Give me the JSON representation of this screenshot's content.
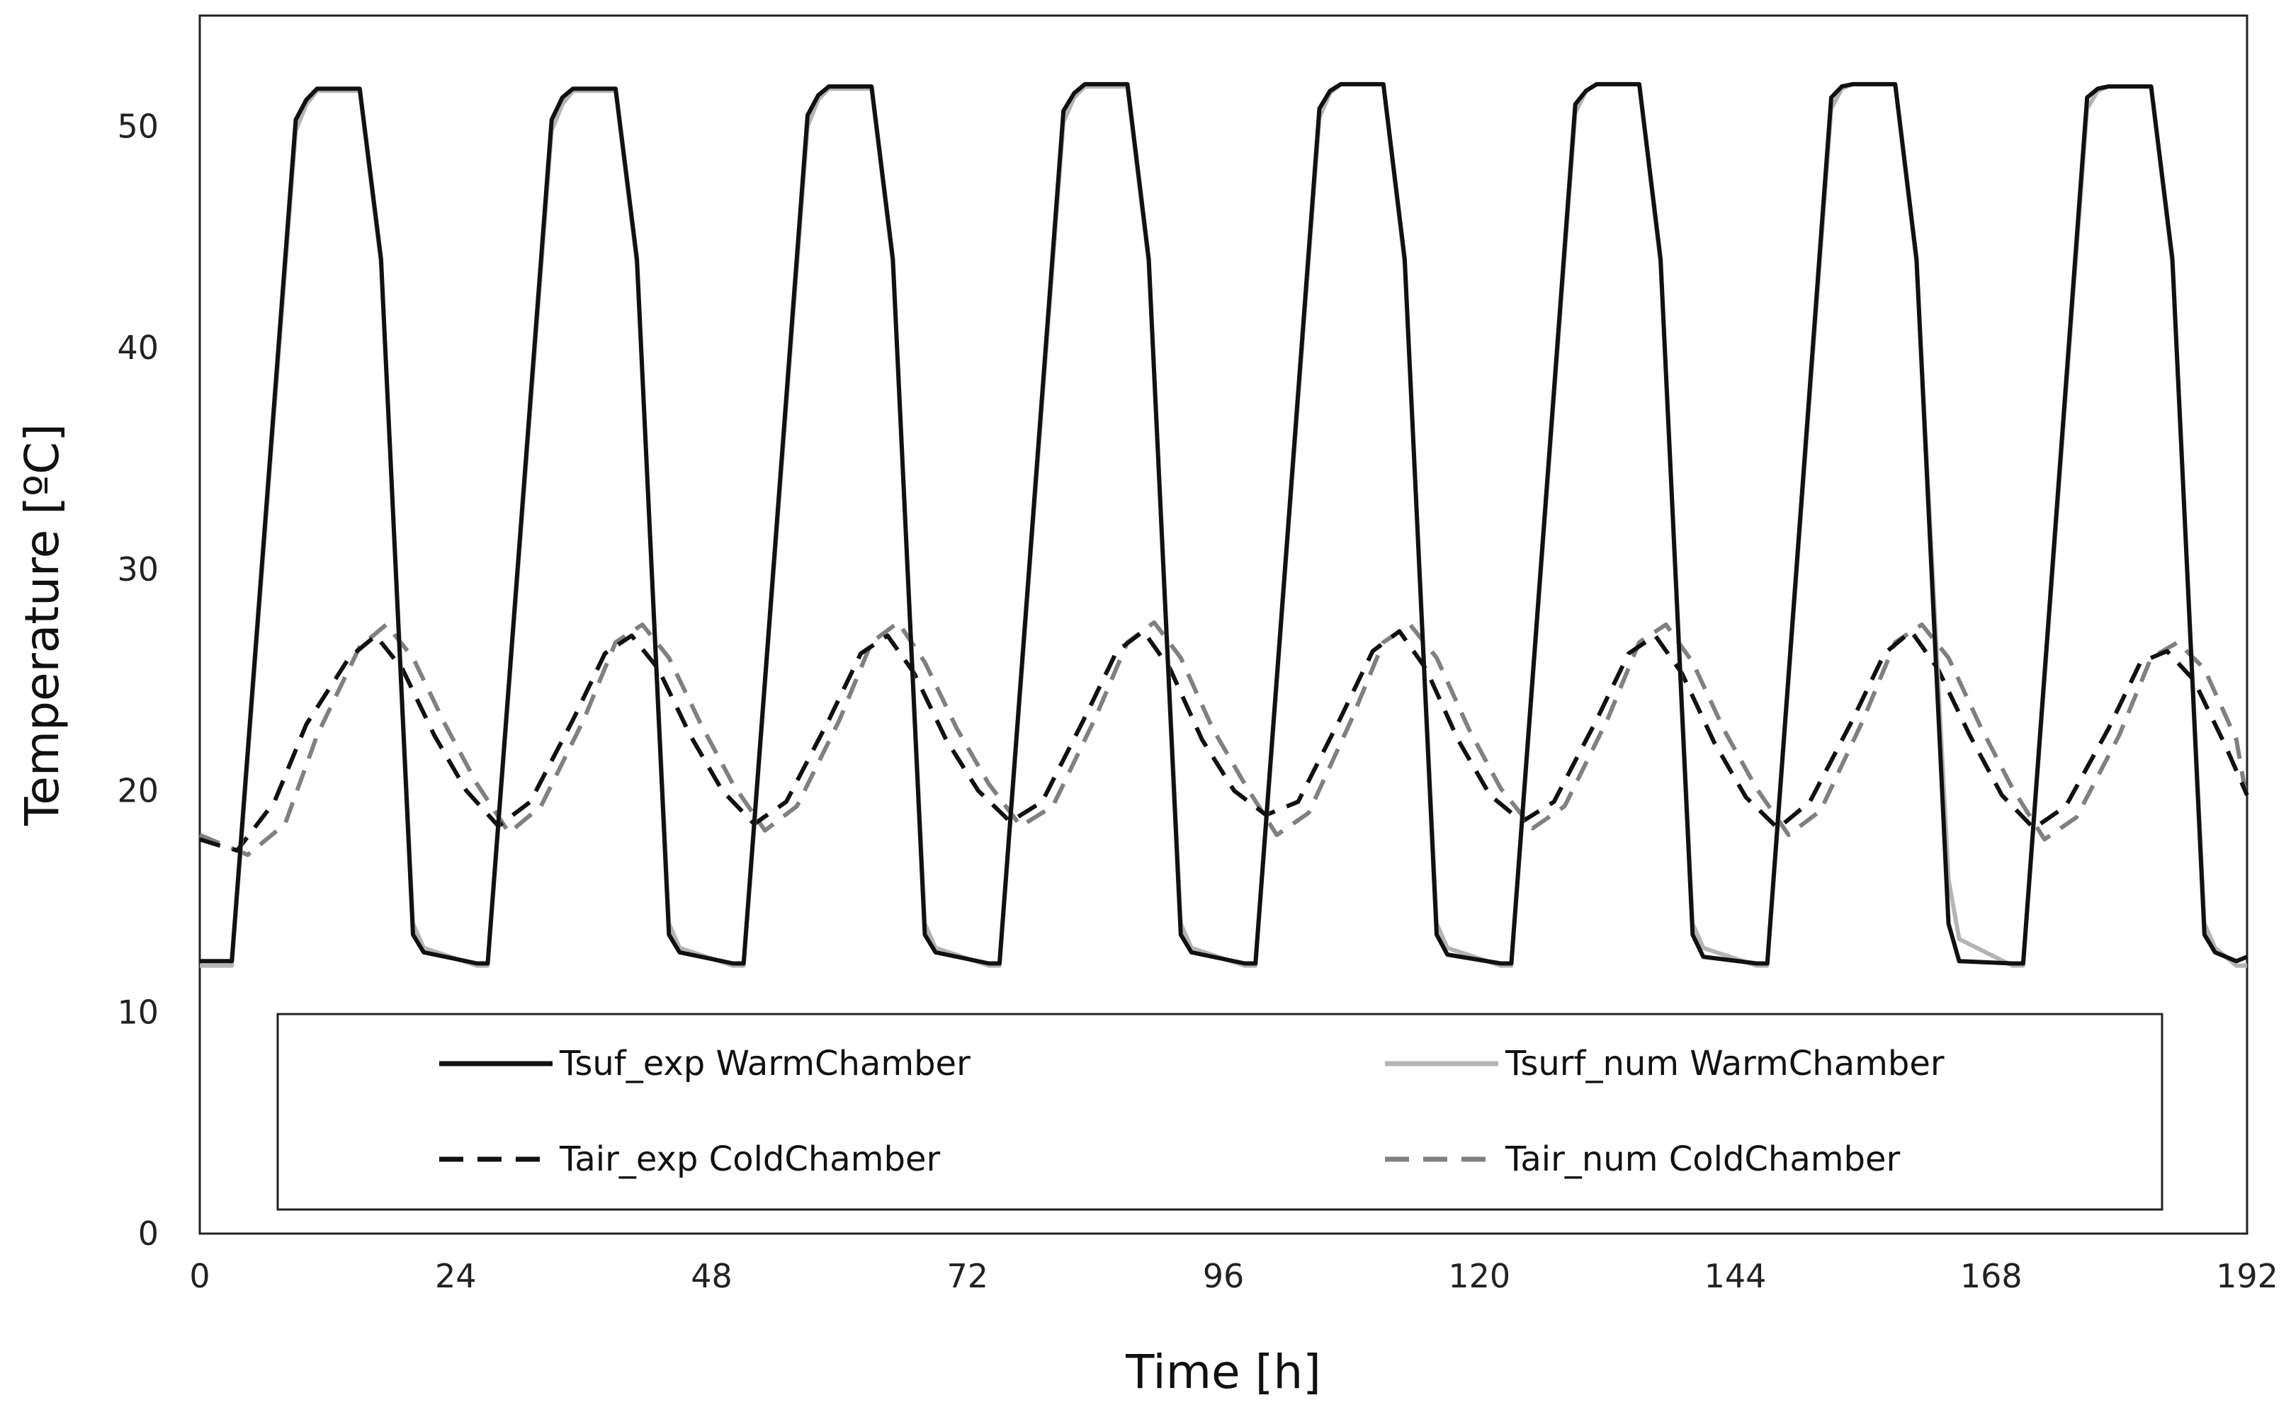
{
  "chart_data": {
    "type": "line",
    "title": "",
    "xlabel": "Time [h]",
    "ylabel": "Temperature [ºC]",
    "xlim": [
      0,
      192
    ],
    "ylim": [
      0,
      55
    ],
    "x_ticks": [
      0,
      24,
      48,
      72,
      96,
      120,
      144,
      168,
      192
    ],
    "y_ticks": [
      0,
      10,
      20,
      30,
      40,
      50
    ],
    "x_tick_labels": [
      "0",
      "24",
      "48",
      "72",
      "96",
      "120",
      "144",
      "168",
      "192"
    ],
    "y_tick_labels": [
      "0",
      "10",
      "20",
      "30",
      "40",
      "50"
    ],
    "grid": false,
    "legend_position": "bottom",
    "series": [
      {
        "name": "Tsuf_exp WarmChamber",
        "color": "#111111",
        "style": "solid",
        "x": [
          0,
          3,
          9,
          10,
          11,
          15,
          17,
          20,
          21,
          26,
          27,
          33,
          34,
          35,
          39,
          41,
          44,
          45,
          50,
          51,
          57,
          58,
          59,
          63,
          65,
          68,
          69,
          74,
          75,
          81,
          82,
          83,
          87,
          89,
          92,
          93,
          98,
          99,
          105,
          106,
          107,
          111,
          113,
          116,
          117,
          122,
          123,
          129,
          130,
          131,
          135,
          137,
          140,
          141,
          146,
          147,
          153,
          154,
          155,
          159,
          161,
          164,
          165,
          170,
          171,
          177,
          178,
          179,
          183,
          185,
          188,
          189,
          191,
          192
        ],
        "y": [
          12.3,
          12.3,
          50.3,
          51.2,
          51.7,
          51.7,
          44,
          13.5,
          12.7,
          12.2,
          12.2,
          50.3,
          51.3,
          51.7,
          51.7,
          44,
          13.5,
          12.7,
          12.2,
          12.2,
          50.5,
          51.4,
          51.8,
          51.8,
          44,
          13.5,
          12.7,
          12.2,
          12.2,
          50.7,
          51.5,
          51.9,
          51.9,
          44,
          13.5,
          12.7,
          12.2,
          12.2,
          50.8,
          51.6,
          51.9,
          51.9,
          44,
          13.5,
          12.6,
          12.2,
          12.2,
          51,
          51.6,
          51.9,
          51.9,
          44,
          13.5,
          12.5,
          12.2,
          12.2,
          51.3,
          51.8,
          51.9,
          51.9,
          44,
          14,
          12.3,
          12.2,
          12.2,
          51.3,
          51.7,
          51.8,
          51.8,
          44,
          13.5,
          12.7,
          12.3,
          12.5
        ]
      },
      {
        "name": "Tsurf_num WarmChamber",
        "color": "#b4b4b4",
        "style": "solid",
        "x": [
          0,
          3,
          9,
          10,
          11,
          15,
          17,
          20,
          21,
          26,
          27,
          33,
          34,
          35,
          39,
          41,
          44,
          45,
          50,
          51,
          57,
          58,
          59,
          63,
          65,
          68,
          69,
          74,
          75,
          81,
          82,
          83,
          87,
          89,
          92,
          93,
          98,
          99,
          105,
          106,
          107,
          111,
          113,
          116,
          117,
          122,
          123,
          129,
          130,
          131,
          135,
          137,
          140,
          141,
          146,
          147,
          153,
          154,
          155,
          159,
          161,
          164,
          165,
          170,
          171,
          177,
          178,
          179,
          183,
          185,
          188,
          189,
          191,
          192
        ],
        "y": [
          12.1,
          12.1,
          49.8,
          51,
          51.6,
          51.6,
          43.8,
          14,
          12.9,
          12.1,
          12.1,
          49.8,
          51,
          51.6,
          51.6,
          43.8,
          14,
          12.9,
          12.1,
          12.1,
          50,
          51.2,
          51.7,
          51.7,
          43.8,
          14,
          12.9,
          12.1,
          12.1,
          50.2,
          51.3,
          51.8,
          51.8,
          43.8,
          14,
          12.9,
          12.1,
          12.1,
          50.4,
          51.5,
          51.9,
          51.9,
          43.8,
          14,
          12.9,
          12.1,
          12.1,
          50.6,
          51.6,
          51.9,
          51.9,
          43.8,
          14,
          12.9,
          12.1,
          12.1,
          50.8,
          51.7,
          51.9,
          51.9,
          43.8,
          16,
          13.3,
          12.1,
          12.1,
          50.8,
          51.6,
          51.8,
          51.8,
          43.8,
          14,
          12.9,
          12.1,
          12.1
        ]
      },
      {
        "name": "Tair_exp ColdChamber",
        "color": "#111111",
        "style": "dashed",
        "x": [
          0,
          2,
          3.5,
          7,
          10,
          14,
          16.5,
          19,
          22,
          25,
          28,
          31,
          35,
          38,
          40.5,
          43,
          46,
          49,
          52,
          55,
          59,
          62,
          64.5,
          67,
          70,
          73,
          76,
          79,
          83,
          86,
          88.5,
          91,
          94,
          97,
          100,
          103,
          107,
          110,
          112.5,
          115,
          118,
          121,
          124,
          127,
          131,
          134,
          136.5,
          139,
          142,
          145,
          148,
          151,
          155,
          158,
          160.5,
          163,
          166,
          169,
          172,
          175,
          179,
          182,
          184.5,
          187,
          190,
          192
        ],
        "y": [
          17.8,
          17.5,
          17.3,
          19.5,
          23,
          26,
          27,
          25.5,
          22.5,
          20,
          18.4,
          19.5,
          23.2,
          26.2,
          27,
          25.5,
          22.5,
          20,
          18.5,
          19.5,
          23.2,
          26.2,
          27,
          25.3,
          22.3,
          20,
          18.6,
          19.5,
          23.3,
          26.3,
          27.2,
          25.5,
          22.3,
          20,
          18.9,
          19.5,
          23.3,
          26.3,
          27.2,
          25.5,
          22.3,
          19.8,
          18.6,
          19.5,
          23.2,
          26.2,
          27,
          25.3,
          22.2,
          19.7,
          18.3,
          19.5,
          23.2,
          26.2,
          27.2,
          25.5,
          22.5,
          19.8,
          18.3,
          19.3,
          22.8,
          25.8,
          26.3,
          25,
          22,
          19.8
        ]
      },
      {
        "name": "Tair_num ColdChamber",
        "color": "#808080",
        "style": "dashed",
        "x": [
          0,
          2,
          4.5,
          8,
          11,
          15,
          17.5,
          20,
          23,
          26,
          29,
          32,
          36,
          39,
          41.5,
          44,
          47,
          50,
          53,
          56,
          60,
          63,
          65.5,
          68,
          71,
          74,
          77,
          80,
          84,
          87,
          89.5,
          92,
          95,
          98,
          101,
          104,
          108,
          111,
          113.5,
          116,
          119,
          122,
          125,
          128,
          132,
          135,
          137.5,
          140,
          143,
          146,
          149,
          152,
          156,
          159,
          161.5,
          164,
          167,
          170,
          173,
          176,
          180,
          183,
          185.5,
          188,
          191,
          192
        ],
        "y": [
          18,
          17.6,
          17.1,
          18.5,
          22.5,
          26.5,
          27.5,
          26,
          23,
          20.3,
          18.1,
          19.3,
          23.2,
          26.7,
          27.5,
          26,
          23,
          20.3,
          18.2,
          19.3,
          23.2,
          26.7,
          27.6,
          25.8,
          22.8,
          20.3,
          18.4,
          19.3,
          23.3,
          26.7,
          27.6,
          26,
          22.8,
          20.3,
          18,
          19,
          23.2,
          26.7,
          27.5,
          26,
          22.8,
          20.1,
          18.3,
          19.3,
          23.2,
          26.7,
          27.5,
          25.8,
          22.7,
          20.1,
          18,
          19.1,
          23.2,
          26.7,
          27.5,
          26,
          22.9,
          20.1,
          17.8,
          18.8,
          22.5,
          26,
          26.7,
          25.5,
          22.3,
          19.5
        ]
      }
    ]
  }
}
